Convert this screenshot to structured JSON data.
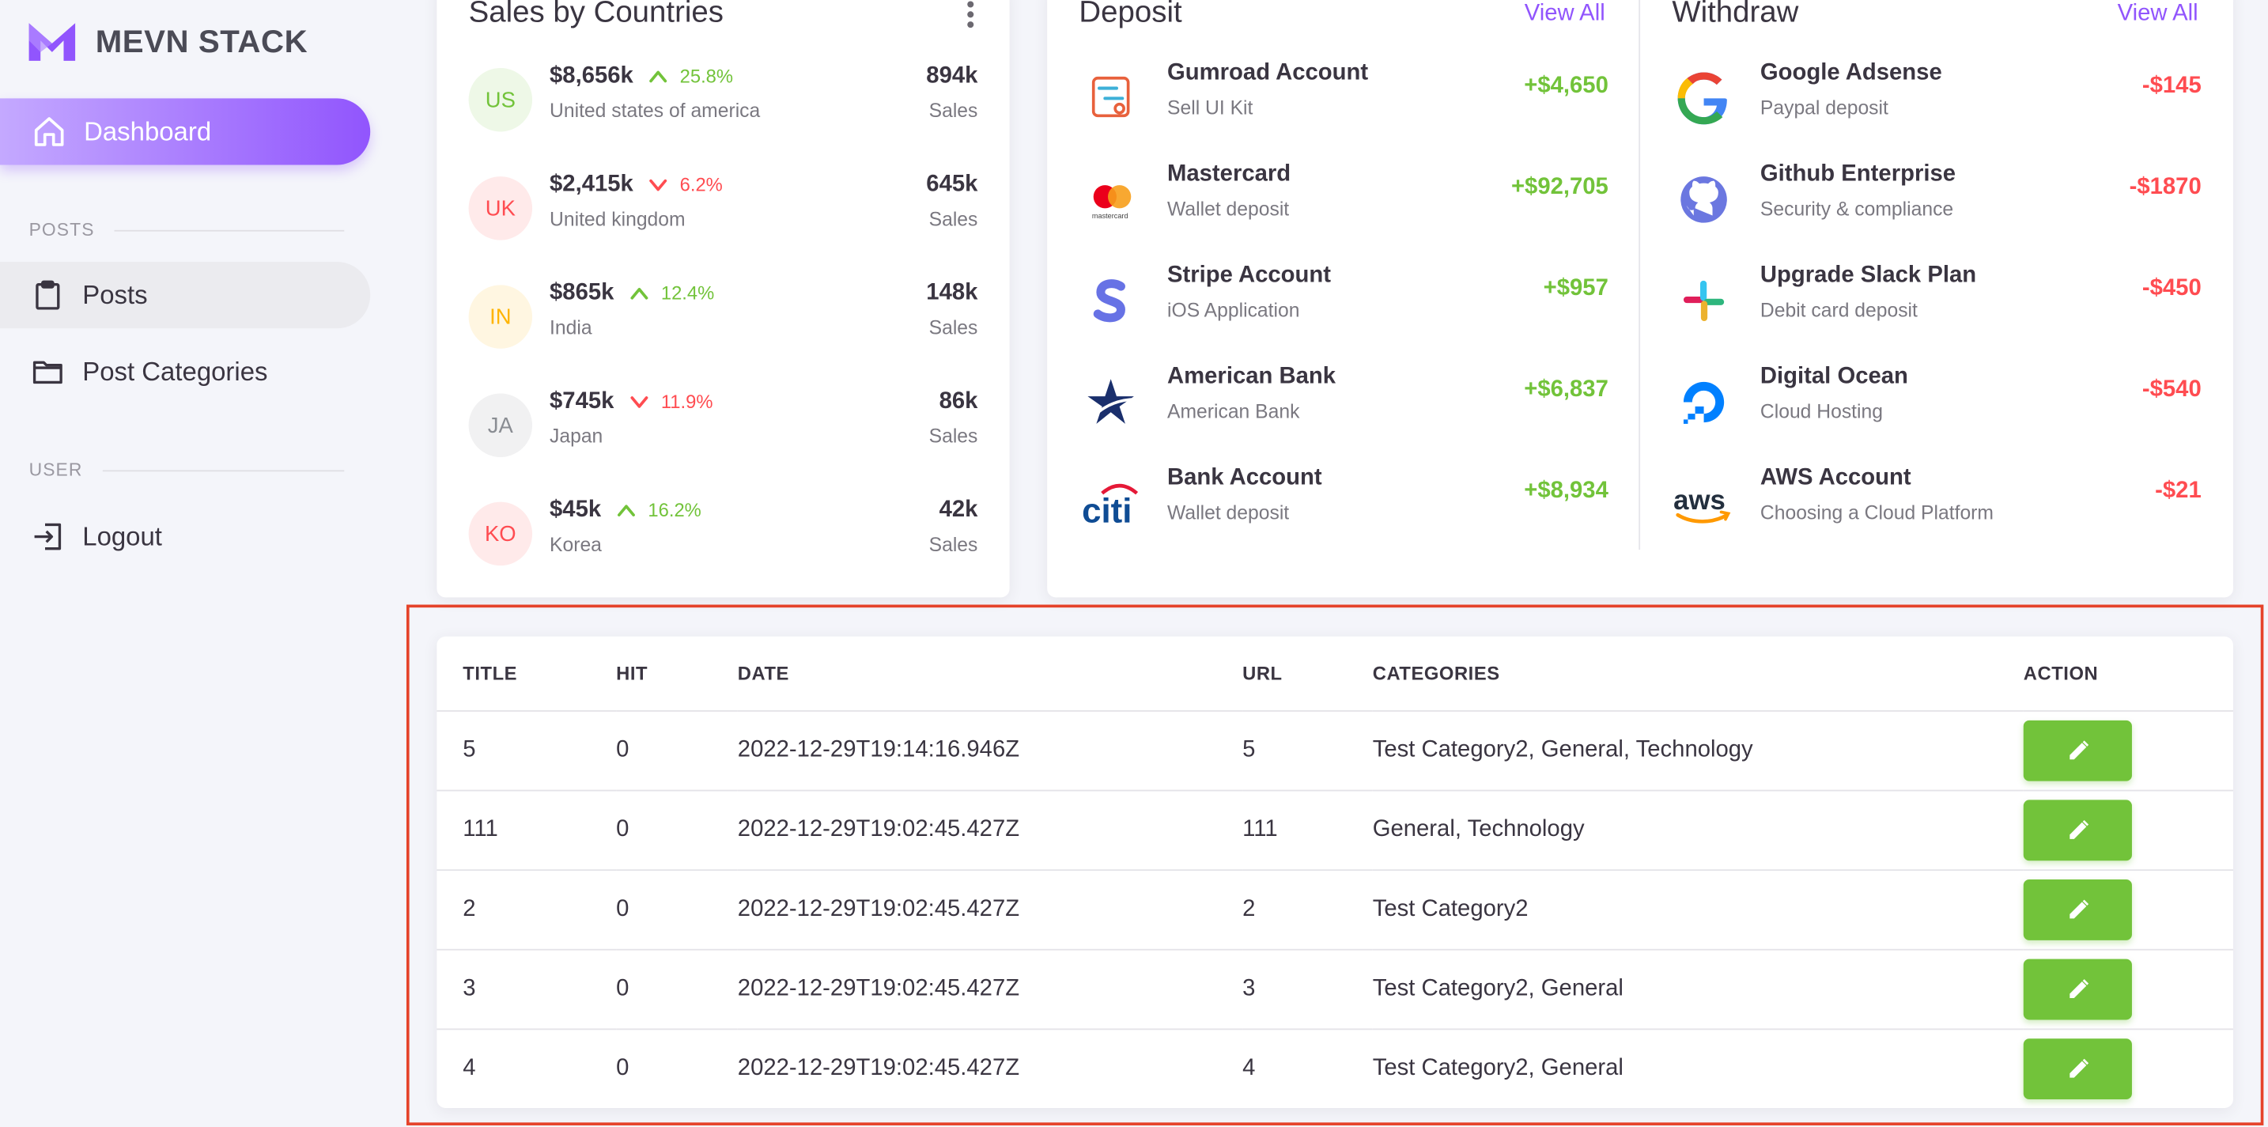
{
  "brand": {
    "name": "MEVN STACK"
  },
  "nav": {
    "dashboard": "Dashboard",
    "posts_section": "POSTS",
    "posts": "Posts",
    "post_categories": "Post Categories",
    "user_section": "USER",
    "logout": "Logout"
  },
  "sales": {
    "title": "Sales by Countries",
    "rows": [
      {
        "code": "US",
        "amount": "$8,656k",
        "trend": "up",
        "percent": "25.8%",
        "name": "United states of america",
        "sales": "894k",
        "sales_label": "Sales",
        "color": "#72c33a",
        "bg": "#eef8e7"
      },
      {
        "code": "UK",
        "amount": "$2,415k",
        "trend": "down",
        "percent": "6.2%",
        "name": "United kingdom",
        "sales": "645k",
        "sales_label": "Sales",
        "color": "#ff4c51",
        "bg": "#ffeaea"
      },
      {
        "code": "IN",
        "amount": "$865k",
        "trend": "up",
        "percent": "12.4%",
        "name": "India",
        "sales": "148k",
        "sales_label": "Sales",
        "color": "#ffb400",
        "bg": "#fff6e1"
      },
      {
        "code": "JA",
        "amount": "$745k",
        "trend": "down",
        "percent": "11.9%",
        "name": "Japan",
        "sales": "86k",
        "sales_label": "Sales",
        "color": "#8a8d93",
        "bg": "#f1f1f2"
      },
      {
        "code": "KO",
        "amount": "$45k",
        "trend": "up",
        "percent": "16.2%",
        "name": "Korea",
        "sales": "42k",
        "sales_label": "Sales",
        "color": "#ff4c51",
        "bg": "#ffeaea"
      }
    ]
  },
  "deposit": {
    "title": "Deposit",
    "view_all": "View All",
    "items": [
      {
        "title": "Gumroad Account",
        "sub": "Sell UI Kit",
        "amount": "+$4,650",
        "icon": "gumroad-icon"
      },
      {
        "title": "Mastercard",
        "sub": "Wallet deposit",
        "amount": "+$92,705",
        "icon": "mastercard-icon"
      },
      {
        "title": "Stripe Account",
        "sub": "iOS Application",
        "amount": "+$957",
        "icon": "stripe-icon"
      },
      {
        "title": "American Bank",
        "sub": "American Bank",
        "amount": "+$6,837",
        "icon": "american-bank-icon"
      },
      {
        "title": "Bank Account",
        "sub": "Wallet deposit",
        "amount": "+$8,934",
        "icon": "citi-icon"
      }
    ]
  },
  "withdraw": {
    "title": "Withdraw",
    "view_all": "View All",
    "items": [
      {
        "title": "Google Adsense",
        "sub": "Paypal deposit",
        "amount": "-$145",
        "icon": "google-icon"
      },
      {
        "title": "Github Enterprise",
        "sub": "Security & compliance",
        "amount": "-$1870",
        "icon": "github-icon"
      },
      {
        "title": "Upgrade Slack Plan",
        "sub": "Debit card deposit",
        "amount": "-$450",
        "icon": "slack-icon"
      },
      {
        "title": "Digital Ocean",
        "sub": "Cloud Hosting",
        "amount": "-$540",
        "icon": "digital-ocean-icon"
      },
      {
        "title": "AWS Account",
        "sub": "Choosing a Cloud Platform",
        "amount": "-$21",
        "icon": "aws-icon"
      }
    ]
  },
  "posts_table": {
    "headers": [
      "TITLE",
      "HIT",
      "DATE",
      "URL",
      "CATEGORIES",
      "ACTION"
    ],
    "rows": [
      {
        "title": "5",
        "hit": "0",
        "date": "2022-12-29T19:14:16.946Z",
        "url": "5",
        "categories": "Test Category2, General, Technology"
      },
      {
        "title": "111",
        "hit": "0",
        "date": "2022-12-29T19:02:45.427Z",
        "url": "111",
        "categories": "General, Technology"
      },
      {
        "title": "2",
        "hit": "0",
        "date": "2022-12-29T19:02:45.427Z",
        "url": "2",
        "categories": "Test Category2"
      },
      {
        "title": "3",
        "hit": "0",
        "date": "2022-12-29T19:02:45.427Z",
        "url": "3",
        "categories": "Test Category2, General"
      },
      {
        "title": "4",
        "hit": "0",
        "date": "2022-12-29T19:02:45.427Z",
        "url": "4",
        "categories": "Test Category2, General"
      }
    ]
  },
  "colors": {
    "primary": "#9155fd",
    "success": "#72c33a",
    "error": "#ff4c51",
    "highlight": "#e5432a"
  }
}
